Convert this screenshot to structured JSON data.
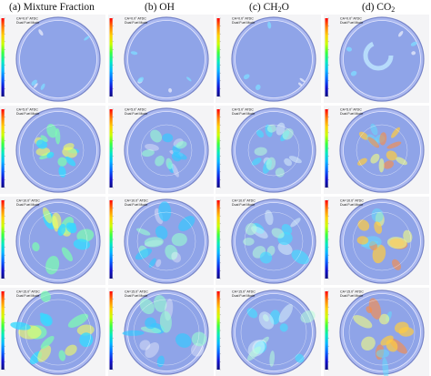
{
  "headers": [
    {
      "prefix": "(a) Mixture Fraction",
      "sub": "",
      "suffix": ""
    },
    {
      "prefix": "(b) OH",
      "sub": "",
      "suffix": ""
    },
    {
      "prefix": "(c) CH",
      "sub": "2",
      "suffix": "O"
    },
    {
      "prefix": "(d) CO",
      "sub": "2",
      "suffix": ""
    }
  ],
  "rows": [
    {
      "ca_label": "CA=0.0° ATDC"
    },
    {
      "ca_label": "CA=5.0° ATDC"
    },
    {
      "ca_label": "CA=10.0° ATDC"
    },
    {
      "ca_label": "CA=15.0° ATDC"
    }
  ],
  "panel_subtitle": "Dual Fuel Mode",
  "colors": {
    "colorbar": [
      "#ff0000",
      "#ff7a00",
      "#ffd000",
      "#c8ff00",
      "#3cff3c",
      "#00e8c0",
      "#00b4ff",
      "#0060ff",
      "#1010d0",
      "#0a0a80"
    ],
    "bowl_fill": "#8fa4e8",
    "bowl_rim": "#aab8f0",
    "background": "#f4f4f6"
  }
}
